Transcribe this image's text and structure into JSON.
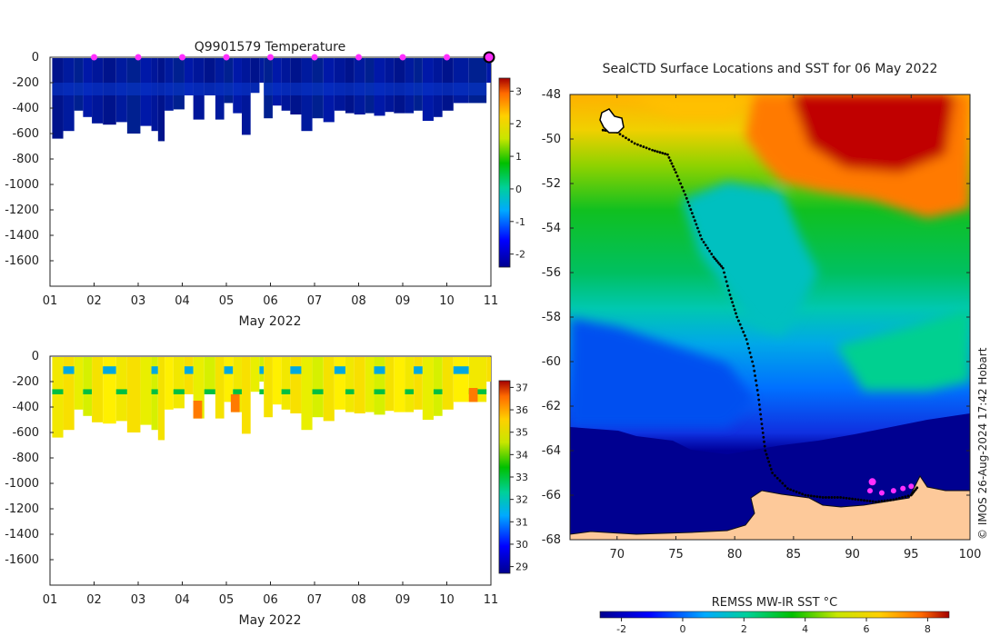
{
  "chart_data": [
    {
      "type": "heatmap",
      "title": "Q9901579  Temperature",
      "xlabel": "May 2022",
      "x_ticks": [
        "01",
        "02",
        "03",
        "04",
        "05",
        "06",
        "07",
        "08",
        "09",
        "10",
        "11"
      ],
      "xlim": [
        1,
        11
      ],
      "y_ticks": [
        0,
        -200,
        -400,
        -600,
        -800,
        -1000,
        -1200,
        -1400,
        -1600
      ],
      "ylim": [
        -1800,
        0
      ],
      "colorbar": {
        "ticks": [
          3,
          2,
          1,
          0,
          -1,
          -2
        ],
        "range": [
          -2.4,
          3.4
        ]
      },
      "surface_markers": [
        2,
        3,
        4,
        5,
        6,
        7,
        8,
        9,
        10
      ],
      "current_position_day": 11,
      "profiles": [
        {
          "day": 1.05,
          "depth": 640
        },
        {
          "day": 1.3,
          "depth": 580
        },
        {
          "day": 1.55,
          "depth": 420
        },
        {
          "day": 1.75,
          "depth": 470
        },
        {
          "day": 1.95,
          "depth": 520
        },
        {
          "day": 2.2,
          "depth": 530
        },
        {
          "day": 2.5,
          "depth": 510
        },
        {
          "day": 2.75,
          "depth": 600
        },
        {
          "day": 3.05,
          "depth": 540
        },
        {
          "day": 3.3,
          "depth": 580
        },
        {
          "day": 3.45,
          "depth": 660
        },
        {
          "day": 3.6,
          "depth": 420
        },
        {
          "day": 3.8,
          "depth": 410
        },
        {
          "day": 4.05,
          "depth": 300
        },
        {
          "day": 4.25,
          "depth": 490
        },
        {
          "day": 4.5,
          "depth": 300
        },
        {
          "day": 4.75,
          "depth": 490
        },
        {
          "day": 4.95,
          "depth": 360
        },
        {
          "day": 5.15,
          "depth": 440
        },
        {
          "day": 5.35,
          "depth": 610
        },
        {
          "day": 5.55,
          "depth": 280
        },
        {
          "day": 5.75,
          "depth": 200
        },
        {
          "day": 5.85,
          "depth": 480
        },
        {
          "day": 6.05,
          "depth": 380
        },
        {
          "day": 6.25,
          "depth": 420
        },
        {
          "day": 6.45,
          "depth": 450
        },
        {
          "day": 6.7,
          "depth": 580
        },
        {
          "day": 6.95,
          "depth": 480
        },
        {
          "day": 7.2,
          "depth": 510
        },
        {
          "day": 7.45,
          "depth": 420
        },
        {
          "day": 7.7,
          "depth": 440
        },
        {
          "day": 7.9,
          "depth": 450
        },
        {
          "day": 8.15,
          "depth": 440
        },
        {
          "day": 8.35,
          "depth": 460
        },
        {
          "day": 8.6,
          "depth": 430
        },
        {
          "day": 8.8,
          "depth": 440
        },
        {
          "day": 9.05,
          "depth": 440
        },
        {
          "day": 9.25,
          "depth": 420
        },
        {
          "day": 9.45,
          "depth": 500
        },
        {
          "day": 9.7,
          "depth": 470
        },
        {
          "day": 9.9,
          "depth": 420
        },
        {
          "day": 10.15,
          "depth": 360
        },
        {
          "day": 10.5,
          "depth": 360
        },
        {
          "day": 10.9,
          "depth": 200
        }
      ]
    },
    {
      "type": "heatmap",
      "title": "",
      "xlabel": "May 2022",
      "x_ticks": [
        "01",
        "02",
        "03",
        "04",
        "05",
        "06",
        "07",
        "08",
        "09",
        "10",
        "11"
      ],
      "xlim": [
        1,
        11
      ],
      "y_ticks": [
        0,
        -200,
        -400,
        -600,
        -800,
        -1000,
        -1200,
        -1400,
        -1600
      ],
      "ylim": [
        -1800,
        0
      ],
      "colorbar": {
        "ticks": [
          37,
          36,
          35,
          34,
          33,
          32,
          31,
          30,
          29
        ],
        "range": [
          28.7,
          37.3
        ]
      },
      "profiles": [
        {
          "day": 1.05,
          "depth": 640
        },
        {
          "day": 1.3,
          "depth": 580
        },
        {
          "day": 1.55,
          "depth": 420
        },
        {
          "day": 1.75,
          "depth": 470
        },
        {
          "day": 1.95,
          "depth": 520
        },
        {
          "day": 2.2,
          "depth": 530
        },
        {
          "day": 2.5,
          "depth": 510
        },
        {
          "day": 2.75,
          "depth": 600
        },
        {
          "day": 3.05,
          "depth": 540
        },
        {
          "day": 3.3,
          "depth": 580
        },
        {
          "day": 3.45,
          "depth": 660
        },
        {
          "day": 3.6,
          "depth": 420
        },
        {
          "day": 3.8,
          "depth": 410
        },
        {
          "day": 4.05,
          "depth": 300
        },
        {
          "day": 4.25,
          "depth": 490
        },
        {
          "day": 4.5,
          "depth": 300
        },
        {
          "day": 4.75,
          "depth": 490
        },
        {
          "day": 4.95,
          "depth": 360
        },
        {
          "day": 5.15,
          "depth": 440
        },
        {
          "day": 5.35,
          "depth": 610
        },
        {
          "day": 5.55,
          "depth": 280
        },
        {
          "day": 5.75,
          "depth": 200
        },
        {
          "day": 5.85,
          "depth": 480
        },
        {
          "day": 6.05,
          "depth": 380
        },
        {
          "day": 6.25,
          "depth": 420
        },
        {
          "day": 6.45,
          "depth": 450
        },
        {
          "day": 6.7,
          "depth": 580
        },
        {
          "day": 6.95,
          "depth": 480
        },
        {
          "day": 7.2,
          "depth": 510
        },
        {
          "day": 7.45,
          "depth": 420
        },
        {
          "day": 7.7,
          "depth": 440
        },
        {
          "day": 7.9,
          "depth": 450
        },
        {
          "day": 8.15,
          "depth": 440
        },
        {
          "day": 8.35,
          "depth": 460
        },
        {
          "day": 8.6,
          "depth": 430
        },
        {
          "day": 8.8,
          "depth": 440
        },
        {
          "day": 9.05,
          "depth": 440
        },
        {
          "day": 9.25,
          "depth": 420
        },
        {
          "day": 9.45,
          "depth": 500
        },
        {
          "day": 9.7,
          "depth": 470
        },
        {
          "day": 9.9,
          "depth": 420
        },
        {
          "day": 10.15,
          "depth": 360
        },
        {
          "day": 10.5,
          "depth": 360
        },
        {
          "day": 10.9,
          "depth": 200
        }
      ],
      "warm_bottom_patches": [
        {
          "day": 4.25,
          "depth_top": 350,
          "depth_bottom": 490
        },
        {
          "day": 5.1,
          "depth_top": 300,
          "depth_bottom": 440
        },
        {
          "day": 10.5,
          "depth_top": 250,
          "depth_bottom": 360
        }
      ]
    },
    {
      "type": "heatmap",
      "title": "SealCTD Surface Locations and SST for 06 May 2022",
      "xlabel": "",
      "x_ticks": [
        70,
        75,
        80,
        85,
        90,
        95,
        100
      ],
      "xlim": [
        66,
        100
      ],
      "y_ticks": [
        -48,
        -50,
        -52,
        -54,
        -56,
        -58,
        -60,
        -62,
        -64,
        -66,
        -68
      ],
      "ylim": [
        -68,
        -48
      ],
      "colorbar": {
        "label": "REMSS MW-IR SST °C",
        "ticks": [
          -2,
          0,
          2,
          4,
          6,
          8
        ],
        "range": [
          -2.7,
          8.7
        ]
      },
      "track": [
        [
          68.8,
          -49.6
        ],
        [
          70,
          -49.7
        ],
        [
          71.5,
          -50.2
        ],
        [
          73,
          -50.5
        ],
        [
          74.3,
          -50.7
        ],
        [
          75,
          -51.5
        ],
        [
          75.8,
          -52.5
        ],
        [
          76.5,
          -53.5
        ],
        [
          77.2,
          -54.5
        ],
        [
          78.2,
          -55.3
        ],
        [
          79,
          -55.8
        ],
        [
          79.6,
          -57
        ],
        [
          80.2,
          -58
        ],
        [
          81,
          -59
        ],
        [
          81.6,
          -60.2
        ],
        [
          82,
          -61.5
        ],
        [
          82.3,
          -62.8
        ],
        [
          82.6,
          -64
        ],
        [
          83.2,
          -65
        ],
        [
          84.5,
          -65.7
        ],
        [
          86,
          -66
        ],
        [
          87.5,
          -66.1
        ],
        [
          89,
          -66.1
        ],
        [
          90.5,
          -66.2
        ],
        [
          92,
          -66.3
        ],
        [
          93.5,
          -66.2
        ],
        [
          95,
          -66
        ],
        [
          95.6,
          -65.6
        ]
      ],
      "surface_locations": [
        [
          91.7,
          -65.4
        ],
        [
          91.5,
          -65.8
        ],
        [
          92.5,
          -65.9
        ],
        [
          93.5,
          -65.8
        ],
        [
          94.3,
          -65.7
        ],
        [
          95,
          -65.6
        ]
      ],
      "credit": "© IMOS 26-Aug-2024 17:42 Hobart"
    }
  ]
}
